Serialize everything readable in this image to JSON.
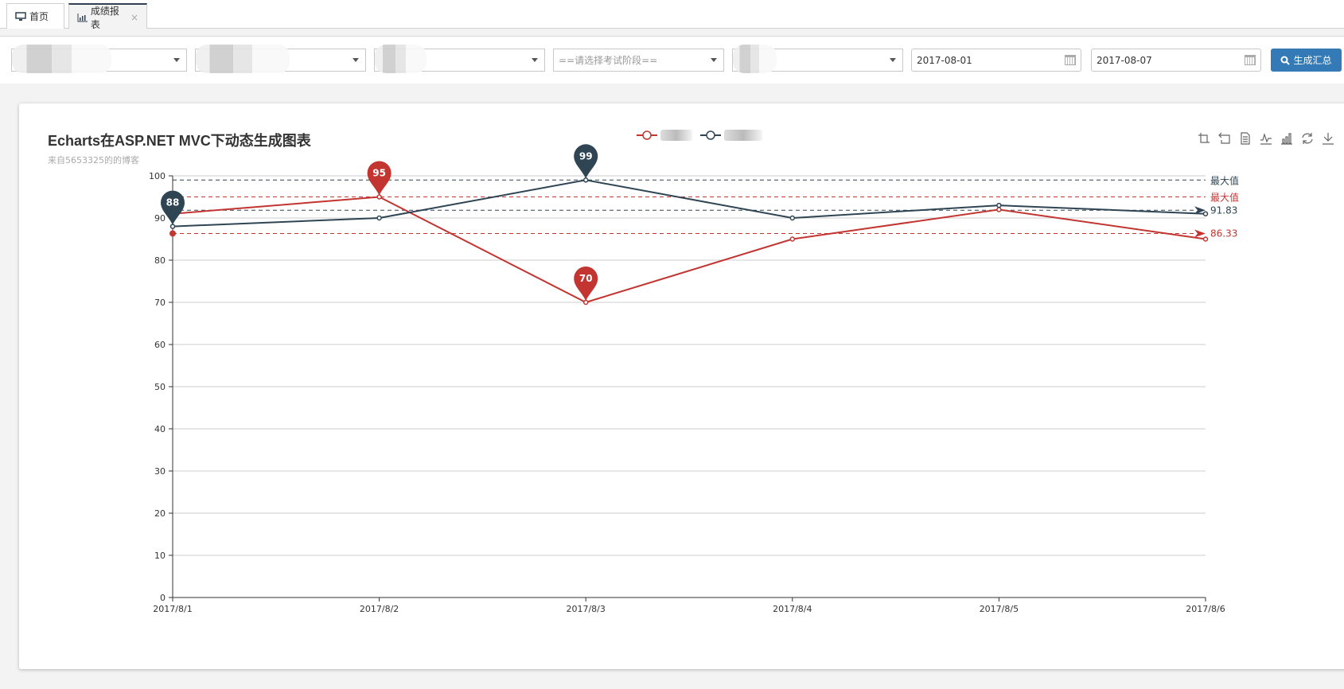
{
  "tabs": [
    {
      "label": "首页",
      "icon": "monitor-icon",
      "active": false
    },
    {
      "label": "成绩报表",
      "icon": "bar-chart-icon",
      "active": true,
      "closable": true,
      "close_glyph": "×"
    }
  ],
  "filters": {
    "select1": {
      "value": "",
      "redacted": true
    },
    "select2": {
      "value": "",
      "redacted": true
    },
    "select3": {
      "value": "",
      "redacted": true
    },
    "exam_stage": {
      "placeholder": "==请选择考试阶段=="
    },
    "select5": {
      "value": "",
      "redacted": true
    },
    "start_date": "2017-08-01",
    "end_date": "2017-08-07",
    "generate_button": "生成汇总"
  },
  "chart_header": {
    "title": "Echarts在ASP.NET MVC下动态生成图表",
    "subtitle": "来自5653325的的博客"
  },
  "toolbox": [
    "data-zoom-icon",
    "data-zoom-reset-icon",
    "data-view-icon",
    "line-chart-icon",
    "bar-chart-icon",
    "restore-icon",
    "save-image-icon"
  ],
  "chart_data": {
    "type": "line",
    "title": "Echarts在ASP.NET MVC下动态生成图表",
    "subtitle": "来自5653325的的博客",
    "categories": [
      "2017/8/1",
      "2017/8/2",
      "2017/8/3",
      "2017/8/4",
      "2017/8/5",
      "2017/8/6"
    ],
    "series": [
      {
        "name": "(redacted)",
        "color": "#c23531",
        "values": [
          91,
          95,
          70,
          85,
          92,
          85
        ],
        "markPoint": {
          "max": 95,
          "min": 70
        },
        "markLine": {
          "max_label": "最大值",
          "average": 86.33
        }
      },
      {
        "name": "(redacted)",
        "color": "#2f4554",
        "values": [
          88,
          90,
          99,
          90,
          93,
          91
        ],
        "markPoint": {
          "max": 99,
          "min": 88
        },
        "markLine": {
          "max_label": "最大值",
          "average": 91.83
        }
      }
    ],
    "yticks": [
      0,
      10,
      20,
      30,
      40,
      50,
      60,
      70,
      80,
      90,
      100
    ],
    "ylim": [
      0,
      100
    ],
    "grid": true,
    "legend_position": "top-center"
  },
  "labels": {
    "max1": "最大值",
    "max2": "最大值",
    "avg_dark": "91.83",
    "avg_red": "86.33",
    "pin_dark_max": "99",
    "pin_dark_min": "88",
    "pin_red_max": "95",
    "pin_red_min": "70"
  }
}
